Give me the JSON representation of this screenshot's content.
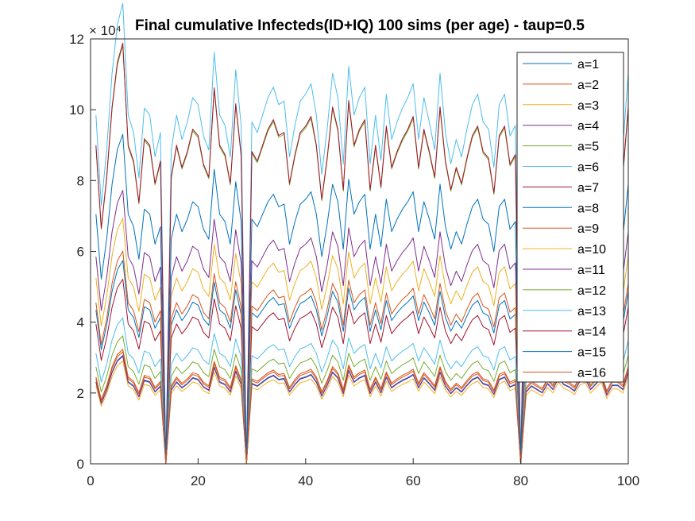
{
  "chart_data": {
    "type": "line",
    "title": "Final cumulative Infecteds(ID+IQ) 100 sims (per age) - taup=0.5",
    "xlabel": "",
    "ylabel": "",
    "xlim": [
      0,
      100
    ],
    "ylim": [
      0,
      12
    ],
    "y_exponent_label": "× 10⁴",
    "xticks": [
      "0",
      "20",
      "40",
      "60",
      "80",
      "100"
    ],
    "yticks": [
      "0",
      "2",
      "4",
      "6",
      "8",
      "10",
      "12"
    ],
    "legend_position": "top-right",
    "grid": false,
    "colors": [
      "#0072BD",
      "#D95319",
      "#EDB120",
      "#7E2F8E",
      "#77AC30",
      "#4DBEEE",
      "#A2142F",
      "#0072BD",
      "#D95319",
      "#EDB120",
      "#7E2F8E",
      "#77AC30",
      "#4DBEEE",
      "#A2142F",
      "#0072BD",
      "#D95319"
    ],
    "x": [
      1,
      2,
      3,
      4,
      5,
      6,
      7,
      8,
      9,
      10,
      11,
      12,
      13,
      14,
      15,
      16,
      17,
      18,
      19,
      20,
      21,
      22,
      23,
      24,
      25,
      26,
      27,
      28,
      29,
      30,
      31,
      32,
      33,
      34,
      35,
      36,
      37,
      38,
      39,
      40,
      41,
      42,
      43,
      44,
      45,
      46,
      47,
      48,
      49,
      50,
      51,
      52,
      53,
      54,
      55,
      56,
      57,
      58,
      59,
      60,
      61,
      62,
      63,
      64,
      65,
      66,
      67,
      68,
      69,
      70,
      71,
      72,
      73,
      74,
      75,
      76,
      77,
      78,
      79,
      80,
      81,
      82,
      83,
      84,
      85,
      86,
      87,
      88,
      89,
      90,
      91,
      92,
      93,
      94,
      95,
      96,
      97,
      98,
      99,
      100
    ],
    "base_profile": [
      1.0,
      0.74,
      0.9,
      1.12,
      1.26,
      1.32,
      1.0,
      0.95,
      0.82,
      1.02,
      1.0,
      0.88,
      0.95,
      0.0,
      0.9,
      1.0,
      0.93,
      0.98,
      1.05,
      1.03,
      0.94,
      0.9,
      1.18,
      1.0,
      0.97,
      0.88,
      1.13,
      0.97,
      0.0,
      0.98,
      0.95,
      1.0,
      1.05,
      1.08,
      1.03,
      1.04,
      0.88,
      0.97,
      1.04,
      1.06,
      1.09,
      1.0,
      0.83,
      0.96,
      1.12,
      1.05,
      0.86,
      1.14,
      1.0,
      1.05,
      1.08,
      0.86,
      1.0,
      0.87,
      1.06,
      0.93,
      0.98,
      1.02,
      1.05,
      1.09,
      0.93,
      1.05,
      0.98,
      0.9,
      1.12,
      0.95,
      0.86,
      0.93,
      0.88,
      0.96,
      1.03,
      1.06,
      0.98,
      0.96,
      0.85,
      1.03,
      1.06,
      0.94,
      0.97,
      0.0,
      0.88,
      0.95,
      0.91,
      0.87,
      0.98,
      0.91,
      1.05,
      0.97,
      0.94,
      0.89,
      1.01,
      1.04,
      0.91,
      0.98,
      1.05,
      0.84,
      0.96,
      0.96,
      0.91,
      1.12
    ],
    "series": [
      {
        "name": "a=1",
        "scale": 2.32
      },
      {
        "name": "a=2",
        "scale": 2.4
      },
      {
        "name": "a=3",
        "scale": 2.2
      },
      {
        "name": "a=4",
        "scale": 2.3
      },
      {
        "name": "a=5",
        "scale": 2.74
      },
      {
        "name": "a=6",
        "scale": 3.12
      },
      {
        "name": "a=7",
        "scale": 3.95
      },
      {
        "name": "a=8",
        "scale": 4.35
      },
      {
        "name": "a=9",
        "scale": 4.55
      },
      {
        "name": "a=10",
        "scale": 5.25
      },
      {
        "name": "a=11",
        "scale": 5.85
      },
      {
        "name": "a=12",
        "scale": 8.95
      },
      {
        "name": "a=13",
        "scale": 9.85
      },
      {
        "name": "a=14",
        "scale": 9.0
      },
      {
        "name": "a=15",
        "scale": 7.05
      },
      {
        "name": "a=16",
        "scale": 2.45
      }
    ]
  }
}
